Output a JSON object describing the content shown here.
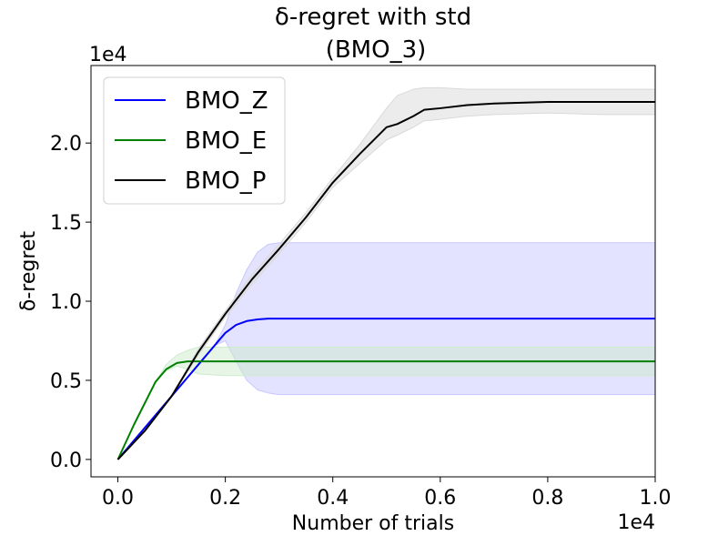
{
  "chart_data": {
    "type": "line",
    "title": "δ-regret with std",
    "subtitle": "(BMO_3)",
    "xlabel": "Number of trials",
    "ylabel": "δ-regret",
    "x_multiplier": "1e4",
    "y_multiplier": "1e4",
    "xlim": [
      -0.05,
      1.0
    ],
    "ylim": [
      -0.11,
      2.49
    ],
    "xticks": [
      0.0,
      0.2,
      0.4,
      0.6,
      0.8,
      1.0
    ],
    "xtick_labels": [
      "0.0",
      "0.2",
      "0.4",
      "0.6",
      "0.8",
      "1.0"
    ],
    "yticks": [
      0.0,
      0.5,
      1.0,
      1.5,
      2.0
    ],
    "ytick_labels": [
      "0.0",
      "0.5",
      "1.0",
      "1.5",
      "2.0"
    ],
    "grid": false,
    "legend_position": "upper-left",
    "series": [
      {
        "name": "BMO_Z",
        "color": "#0000ff",
        "band_color": "#c8c8ff",
        "x": [
          0.0,
          0.05,
          0.1,
          0.15,
          0.18,
          0.2,
          0.22,
          0.24,
          0.26,
          0.28,
          0.3,
          0.4,
          0.6,
          0.8,
          1.0
        ],
        "y": [
          0.0,
          0.2,
          0.4,
          0.6,
          0.72,
          0.8,
          0.85,
          0.875,
          0.885,
          0.89,
          0.89,
          0.89,
          0.89,
          0.89,
          0.89
        ],
        "lower": [
          0.0,
          0.2,
          0.4,
          0.6,
          0.72,
          0.75,
          0.62,
          0.5,
          0.44,
          0.42,
          0.41,
          0.41,
          0.41,
          0.41,
          0.41
        ],
        "upper": [
          0.0,
          0.2,
          0.4,
          0.6,
          0.72,
          0.85,
          1.05,
          1.2,
          1.31,
          1.36,
          1.37,
          1.37,
          1.37,
          1.37,
          1.37
        ]
      },
      {
        "name": "BMO_E",
        "color": "#008000",
        "band_color": "#cdeccd",
        "x": [
          0.0,
          0.03,
          0.07,
          0.09,
          0.11,
          0.13,
          0.15,
          0.2,
          0.4,
          0.6,
          0.8,
          1.0
        ],
        "y": [
          0.0,
          0.22,
          0.49,
          0.57,
          0.61,
          0.62,
          0.62,
          0.62,
          0.62,
          0.62,
          0.62,
          0.62
        ],
        "lower": [
          0.0,
          0.22,
          0.49,
          0.56,
          0.59,
          0.57,
          0.54,
          0.53,
          0.53,
          0.53,
          0.53,
          0.53
        ],
        "upper": [
          0.0,
          0.22,
          0.49,
          0.6,
          0.66,
          0.69,
          0.71,
          0.71,
          0.71,
          0.71,
          0.71,
          0.71
        ]
      },
      {
        "name": "BMO_P",
        "color": "#000000",
        "band_color": "#d9d9d9",
        "x": [
          0.0,
          0.05,
          0.1,
          0.15,
          0.2,
          0.25,
          0.3,
          0.35,
          0.4,
          0.45,
          0.5,
          0.52,
          0.55,
          0.57,
          0.6,
          0.65,
          0.7,
          0.8,
          0.9,
          1.0
        ],
        "y": [
          0.0,
          0.18,
          0.4,
          0.68,
          0.92,
          1.14,
          1.33,
          1.53,
          1.75,
          1.93,
          2.1,
          2.12,
          2.17,
          2.21,
          2.22,
          2.24,
          2.25,
          2.26,
          2.26,
          2.26
        ],
        "lower": [
          0.0,
          0.18,
          0.4,
          0.66,
          0.9,
          1.11,
          1.3,
          1.5,
          1.72,
          1.87,
          2.02,
          2.05,
          2.1,
          2.14,
          2.15,
          2.17,
          2.18,
          2.19,
          2.18,
          2.18
        ],
        "upper": [
          0.0,
          0.18,
          0.4,
          0.7,
          0.94,
          1.17,
          1.36,
          1.56,
          1.78,
          1.99,
          2.22,
          2.3,
          2.34,
          2.35,
          2.35,
          2.34,
          2.34,
          2.34,
          2.34,
          2.34
        ]
      }
    ]
  }
}
